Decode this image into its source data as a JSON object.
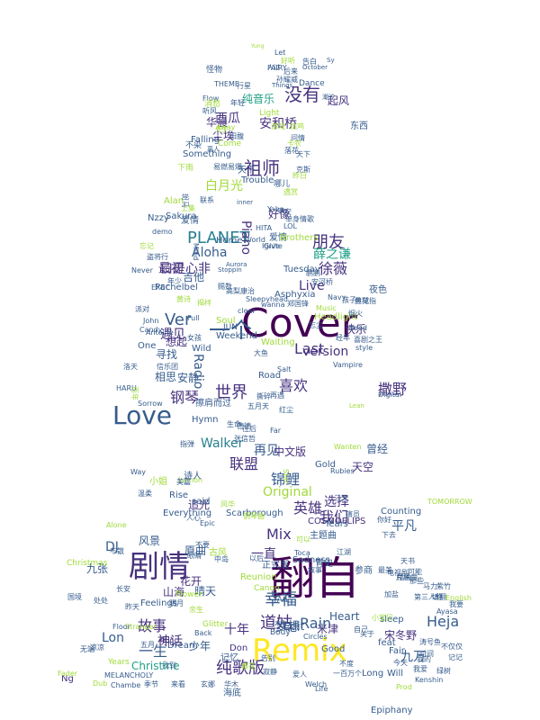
{
  "palette": [
    "#440154",
    "#46327e",
    "#365c8d",
    "#277f8e",
    "#1fa187",
    "#4ac16d",
    "#a0da39",
    "#fde725"
  ],
  "words": [
    {
      "text": "Cover",
      "c": 0
    },
    {
      "text": "翻自",
      "c": 0
    },
    {
      "text": "Remix",
      "c": 7
    },
    {
      "text": "剧情",
      "c": 1
    },
    {
      "text": "Love",
      "c": 2
    },
    {
      "text": "一个",
      "c": 2
    },
    {
      "text": "没有",
      "c": 1
    },
    {
      "text": "祖师",
      "c": 1
    },
    {
      "text": "Ver",
      "c": 2
    },
    {
      "text": "PLANET",
      "c": 3
    },
    {
      "text": "朋友",
      "c": 1
    },
    {
      "text": "世界",
      "c": 1
    },
    {
      "text": "version",
      "c": 1
    },
    {
      "text": "纯歌版",
      "c": 1
    },
    {
      "text": "道姑",
      "c": 1
    },
    {
      "text": "幸福",
      "c": 2
    },
    {
      "text": "Mix",
      "c": 1
    },
    {
      "text": "钢琴",
      "c": 1
    },
    {
      "text": "故事",
      "c": 1
    },
    {
      "text": "一生",
      "c": 2
    },
    {
      "text": "Lon",
      "c": 2
    },
    {
      "text": "Heja",
      "c": 2
    },
    {
      "text": "撒野",
      "c": 1
    },
    {
      "text": "Aloha",
      "c": 2
    },
    {
      "text": "最初",
      "c": 1
    },
    {
      "text": "徐薇",
      "c": 1
    },
    {
      "text": "口是心非",
      "c": 1
    },
    {
      "text": "我们",
      "c": 1
    },
    {
      "text": "Rain",
      "c": 2
    },
    {
      "text": "喜欢",
      "c": 1
    },
    {
      "text": "遇见",
      "c": 1
    },
    {
      "text": "Last",
      "c": 1
    },
    {
      "text": "Live",
      "c": 1
    },
    {
      "text": "Original",
      "c": 6
    },
    {
      "text": "九万",
      "c": 2
    },
    {
      "text": "平凡",
      "c": 2
    },
    {
      "text": "联盟",
      "c": 1
    },
    {
      "text": "一直",
      "c": 1
    },
    {
      "text": "英雄",
      "c": 1
    },
    {
      "text": "锦鲤",
      "c": 2
    },
    {
      "text": "梦想",
      "c": 2
    },
    {
      "text": "神话",
      "c": 1
    },
    {
      "text": "安和桥",
      "c": 1
    },
    {
      "text": "西瓜",
      "c": 1
    },
    {
      "text": "薛之谦",
      "c": 4
    },
    {
      "text": "白月光",
      "c": 6
    },
    {
      "text": "DJ",
      "c": 2
    },
    {
      "text": "九张",
      "c": 2
    },
    {
      "text": "Walker",
      "c": 3
    },
    {
      "text": "Radio",
      "c": 2
    },
    {
      "text": "Piano",
      "c": 1
    },
    {
      "text": "Heart",
      "c": 2
    },
    {
      "text": "Edit",
      "c": 2
    },
    {
      "text": "十年",
      "c": 1
    },
    {
      "text": "少年",
      "c": 2
    },
    {
      "text": "再见",
      "c": 2
    },
    {
      "text": "想起",
      "c": 1
    },
    {
      "text": "米津",
      "c": 1
    },
    {
      "text": "宋冬野",
      "c": 1
    },
    {
      "text": "选择",
      "c": 1
    },
    {
      "text": "花开",
      "c": 1
    },
    {
      "text": "追光",
      "c": 1
    },
    {
      "text": "快乐",
      "c": 1
    },
    {
      "text": "安静",
      "c": 2
    },
    {
      "text": "相思",
      "c": 2
    },
    {
      "text": "寻找",
      "c": 2
    },
    {
      "text": "吉他",
      "c": 2
    },
    {
      "text": "山海",
      "c": 1
    },
    {
      "text": "中文版",
      "c": 1
    },
    {
      "text": "曾经",
      "c": 2
    },
    {
      "text": "天空",
      "c": 1
    },
    {
      "text": "Feelings",
      "c": 2
    },
    {
      "text": "Home",
      "c": 2
    },
    {
      "text": "Dream",
      "c": 2
    },
    {
      "text": "Don",
      "c": 1
    },
    {
      "text": "Rise",
      "c": 2
    },
    {
      "text": "Reunion",
      "c": 6
    },
    {
      "text": "Alan",
      "c": 6
    },
    {
      "text": "晴天",
      "c": 2
    },
    {
      "text": "风景",
      "c": 2
    },
    {
      "text": "Ng",
      "c": 1
    },
    {
      "text": "Christine",
      "c": 4
    },
    {
      "text": "伤心",
      "c": 1
    },
    {
      "text": "华晨",
      "c": 1
    },
    {
      "text": "尘埃",
      "c": 1
    },
    {
      "text": "起风",
      "c": 1
    },
    {
      "text": "纯音乐",
      "c": 4
    },
    {
      "text": "好像",
      "c": 1
    },
    {
      "text": "Circles",
      "c": 2
    },
    {
      "text": "Something",
      "c": 2
    },
    {
      "text": "Counting",
      "c": 2
    },
    {
      "text": "COSMOFLIPS",
      "c": 1
    },
    {
      "text": "Sadness",
      "c": 2
    },
    {
      "text": "Christmas",
      "c": 6
    },
    {
      "text": "Good",
      "c": 2
    },
    {
      "text": "夜色",
      "c": 2
    },
    {
      "text": "海底",
      "c": 2
    },
    {
      "text": "爱情",
      "c": 2
    },
    {
      "text": "原曲",
      "c": 2
    },
    {
      "text": "天下",
      "c": 2
    },
    {
      "text": "东西",
      "c": 2
    },
    {
      "text": "Trouble",
      "c": 2
    },
    {
      "text": "Sakura",
      "c": 2
    },
    {
      "text": "Brothers",
      "c": 6
    },
    {
      "text": "Weekend",
      "c": 2
    },
    {
      "text": "Headlight",
      "c": 6
    },
    {
      "text": "Asphyxia",
      "c": 2
    },
    {
      "text": "Tuesday",
      "c": 2
    },
    {
      "text": "Scarborough",
      "c": 2
    },
    {
      "text": "Epiphany",
      "c": 2
    },
    {
      "text": "TOMORROW",
      "c": 6
    },
    {
      "text": "THEME",
      "c": 2
    },
    {
      "text": "Falling",
      "c": 2
    },
    {
      "text": "Pachelbel",
      "c": 2
    },
    {
      "text": "Sleepyhead",
      "c": 2
    },
    {
      "text": "Everything",
      "c": 2
    },
    {
      "text": "Wild",
      "c": 2
    },
    {
      "text": "Hymn",
      "c": 2
    },
    {
      "text": "Glitter",
      "c": 6
    },
    {
      "text": "Years",
      "c": 6
    },
    {
      "text": "MELANCHOLY",
      "c": 2
    },
    {
      "text": "Flower",
      "c": 6
    },
    {
      "text": "Fair",
      "c": 2
    },
    {
      "text": "Canon",
      "c": 6
    },
    {
      "text": "Stranger",
      "c": 6
    },
    {
      "text": "TAIL",
      "c": 2
    },
    {
      "text": "Nzzy",
      "c": 2
    },
    {
      "text": "EXEC",
      "c": 2
    },
    {
      "text": "FAIRY",
      "c": 2
    },
    {
      "text": "Dance",
      "c": 2
    },
    {
      "text": "Light",
      "c": 6
    },
    {
      "text": "Let",
      "c": 2
    },
    {
      "text": "Yung",
      "c": 6
    },
    {
      "text": "October",
      "c": 2
    },
    {
      "text": "Things",
      "c": 2
    },
    {
      "text": "Flow",
      "c": 2
    },
    {
      "text": "Come",
      "c": 6
    },
    {
      "text": "Away",
      "c": 6
    },
    {
      "text": "Never",
      "c": 2
    },
    {
      "text": "Aurora",
      "c": 2
    },
    {
      "text": "Stoppin",
      "c": 2
    },
    {
      "text": "John",
      "c": 2
    },
    {
      "text": "Candy",
      "c": 2
    },
    {
      "text": "Sorrow",
      "c": 2
    },
    {
      "text": "Antoine",
      "c": 2
    },
    {
      "text": "HARU",
      "c": 2
    },
    {
      "text": "One",
      "c": 2
    },
    {
      "text": "JUN",
      "c": 2
    },
    {
      "text": "Full",
      "c": 2
    },
    {
      "text": "Soul",
      "c": 6
    },
    {
      "text": "clear",
      "c": 2
    },
    {
      "text": "Waiting",
      "c": 6
    },
    {
      "text": "wanna",
      "c": 2
    },
    {
      "text": "style",
      "c": 2
    },
    {
      "text": "Need",
      "c": 2
    },
    {
      "text": "Digital",
      "c": 2
    },
    {
      "text": "Vampire",
      "c": 2
    },
    {
      "text": "Salt",
      "c": 2
    },
    {
      "text": "Road",
      "c": 2
    },
    {
      "text": "Star",
      "c": 6
    },
    {
      "text": "Gold",
      "c": 2
    },
    {
      "text": "Far",
      "c": 2
    },
    {
      "text": "Way",
      "c": 2
    },
    {
      "text": "said",
      "c": 2
    },
    {
      "text": "Lemon",
      "c": 6
    },
    {
      "text": "Epic",
      "c": 2
    },
    {
      "text": "Toca",
      "c": 2
    },
    {
      "text": "Tears",
      "c": 2
    },
    {
      "text": "Alone",
      "c": 6
    },
    {
      "text": "Floor",
      "c": 2
    },
    {
      "text": "Back",
      "c": 2
    },
    {
      "text": "English",
      "c": 6
    },
    {
      "text": "sleep",
      "c": 2
    },
    {
      "text": "feat",
      "c": 2
    },
    {
      "text": "Body",
      "c": 2
    },
    {
      "text": "Long",
      "c": 2
    },
    {
      "text": "Will",
      "c": 2
    },
    {
      "text": "Life",
      "c": 2
    },
    {
      "text": "Prod",
      "c": 6
    },
    {
      "text": "Kenshin",
      "c": 2
    },
    {
      "text": "Welch",
      "c": 2
    },
    {
      "text": "Fader",
      "c": 6
    },
    {
      "text": "Ayasa",
      "c": 2
    },
    {
      "text": "LOL",
      "c": 2
    },
    {
      "text": "HITA",
      "c": 2
    },
    {
      "text": "demo",
      "c": 2
    },
    {
      "text": "Mind",
      "c": 2
    },
    {
      "text": "Ignite",
      "c": 2
    },
    {
      "text": "Give",
      "c": 2
    },
    {
      "text": "inner",
      "c": 2
    },
    {
      "text": "Yaha",
      "c": 2
    },
    {
      "text": "World",
      "c": 2
    },
    {
      "text": "Navy",
      "c": 2
    },
    {
      "text": "Music",
      "c": 6
    },
    {
      "text": "Lean",
      "c": 6
    },
    {
      "text": "Rubies",
      "c": 2
    },
    {
      "text": "Dub",
      "c": 6
    },
    {
      "text": "Chambe",
      "c": 2
    },
    {
      "text": "Wanten",
      "c": 6
    },
    {
      "text": "Sy",
      "c": 2
    },
    {
      "text": "好听",
      "c": 6
    },
    {
      "text": "告白",
      "c": 2
    },
    {
      "text": "后来",
      "c": 2
    },
    {
      "text": "人过",
      "c": 2
    },
    {
      "text": "孙耀威",
      "c": 2
    },
    {
      "text": "潮汐",
      "c": 2
    },
    {
      "text": "消愁",
      "c": 6
    },
    {
      "text": "年轻",
      "c": 2
    },
    {
      "text": "行星",
      "c": 2
    },
    {
      "text": "怪物",
      "c": 2
    },
    {
      "text": "听风",
      "c": 2
    },
    {
      "text": "烧鸡",
      "c": 6
    },
    {
      "text": "落花",
      "c": 2
    },
    {
      "text": "问情",
      "c": 2
    },
    {
      "text": "游戏",
      "c": 6
    },
    {
      "text": "先生",
      "c": 6
    },
    {
      "text": "不染",
      "c": 2
    },
    {
      "text": "田馥",
      "c": 2
    },
    {
      "text": "离人",
      "c": 2
    },
    {
      "text": "卡农",
      "c": 6
    },
    {
      "text": "下雨",
      "c": 6
    },
    {
      "text": "易燃易爆",
      "c": 2
    },
    {
      "text": "哪儿",
      "c": 2
    },
    {
      "text": "天下",
      "c": 2
    },
    {
      "text": "克斯",
      "c": 2
    },
    {
      "text": "昨日",
      "c": 6
    },
    {
      "text": "遇赏",
      "c": 6
    },
    {
      "text": "斑马",
      "c": 2
    },
    {
      "text": "上集",
      "c": 6
    },
    {
      "text": "平安",
      "c": 2
    },
    {
      "text": "单身情歌",
      "c": 2
    },
    {
      "text": "联系",
      "c": 2
    },
    {
      "text": "爱情",
      "c": 2
    },
    {
      "text": "忘记",
      "c": 6
    },
    {
      "text": "盗将行",
      "c": 2
    },
    {
      "text": "鹏鹏",
      "c": 2
    },
    {
      "text": "安河桥",
      "c": 2
    },
    {
      "text": "孩子",
      "c": 2
    },
    {
      "text": "典狱",
      "c": 2
    },
    {
      "text": "兰花指",
      "c": 2
    },
    {
      "text": "年少",
      "c": 2
    },
    {
      "text": "郑国锋",
      "c": 2
    },
    {
      "text": "高梨康治",
      "c": 2
    },
    {
      "text": "赐数",
      "c": 2
    },
    {
      "text": "黄诗",
      "c": 6
    },
    {
      "text": "揭样",
      "c": 6
    },
    {
      "text": "派对",
      "c": 2
    },
    {
      "text": "女孩",
      "c": 2
    },
    {
      "text": "忘尘",
      "c": 2
    },
    {
      "text": "烟火",
      "c": 2
    },
    {
      "text": "大鱼",
      "c": 2
    },
    {
      "text": "经年",
      "c": 2
    },
    {
      "text": "喜剧之王",
      "c": 2
    },
    {
      "text": "信乐团",
      "c": 2
    },
    {
      "text": "洛天",
      "c": 2
    },
    {
      "text": "百年",
      "c": 6
    },
    {
      "text": "五月天",
      "c": 2
    },
    {
      "text": "红尘",
      "c": 2
    },
    {
      "text": "往后",
      "c": 2
    },
    {
      "text": "生命",
      "c": 2
    },
    {
      "text": "撕碎",
      "c": 2
    },
    {
      "text": "再遇",
      "c": 2
    },
    {
      "text": "擦肩而过",
      "c": 2
    },
    {
      "text": "德德",
      "c": 2
    },
    {
      "text": "张信哲",
      "c": 2
    },
    {
      "text": "指弹",
      "c": 2
    },
    {
      "text": "美嘉",
      "c": 2
    },
    {
      "text": "小姐",
      "c": 6
    },
    {
      "text": "温柔",
      "c": 2
    },
    {
      "text": "诗人",
      "c": 2
    },
    {
      "text": "人心",
      "c": 2
    },
    {
      "text": "风华",
      "c": 6
    },
    {
      "text": "古风",
      "c": 6
    },
    {
      "text": "不要",
      "c": 2
    },
    {
      "text": "眼睛",
      "c": 2
    },
    {
      "text": "以后",
      "c": 2
    },
    {
      "text": "中岛",
      "c": 2
    },
    {
      "text": "正式版",
      "c": 2
    },
    {
      "text": "钢琴曲",
      "c": 6
    },
    {
      "text": "可以",
      "c": 6
    },
    {
      "text": "叙事",
      "c": 2
    },
    {
      "text": "青史",
      "c": 2
    },
    {
      "text": "主题曲",
      "c": 2
    },
    {
      "text": "三天",
      "c": 2
    },
    {
      "text": "江湖",
      "c": 2
    },
    {
      "text": "演员",
      "c": 2
    },
    {
      "text": "下去",
      "c": 2
    },
    {
      "text": "你好",
      "c": 2
    },
    {
      "text": "天书",
      "c": 2
    },
    {
      "text": "可能",
      "c": 2
    },
    {
      "text": "电视剧",
      "c": 2
    },
    {
      "text": "最美",
      "c": 2
    },
    {
      "text": "参商",
      "c": 2
    },
    {
      "text": "插曲",
      "c": 2
    },
    {
      "text": "第三人称",
      "c": 2
    },
    {
      "text": "那些",
      "c": 2
    },
    {
      "text": "华木",
      "c": 2
    },
    {
      "text": "记忆",
      "c": 2
    },
    {
      "text": "明月",
      "c": 2
    },
    {
      "text": "余生",
      "c": 6
    },
    {
      "text": "樱花",
      "c": 6
    },
    {
      "text": "寂静",
      "c": 2
    },
    {
      "text": "告别",
      "c": 2
    },
    {
      "text": "爱人",
      "c": 2
    },
    {
      "text": "一百万个",
      "c": 2
    },
    {
      "text": "不度",
      "c": 2
    },
    {
      "text": "不仅仅",
      "c": 2
    },
    {
      "text": "来看",
      "c": 2
    },
    {
      "text": "季节",
      "c": 2
    },
    {
      "text": "玄娜",
      "c": 2
    },
    {
      "text": "找到",
      "c": 2
    },
    {
      "text": "无端",
      "c": 2
    },
    {
      "text": "五月",
      "c": 2
    },
    {
      "text": "昨天",
      "c": 2
    },
    {
      "text": "凉凉",
      "c": 2
    },
    {
      "text": "不散",
      "c": 2
    },
    {
      "text": "处处",
      "c": 2
    },
    {
      "text": "国境",
      "c": 2
    },
    {
      "text": "长安",
      "c": 2
    },
    {
      "text": "自己",
      "c": 2
    },
    {
      "text": "关于",
      "c": 2
    },
    {
      "text": "小宝贝",
      "c": 6
    },
    {
      "text": "加盐",
      "c": 2
    },
    {
      "text": "片尾曲",
      "c": 2
    },
    {
      "text": "马力",
      "c": 2
    },
    {
      "text": "填翻",
      "c": 2
    },
    {
      "text": "紫竹",
      "c": 2
    },
    {
      "text": "我要",
      "c": 2
    },
    {
      "text": "涛号鱼",
      "c": 2
    },
    {
      "text": "时间",
      "c": 2
    },
    {
      "text": "今天",
      "c": 2
    },
    {
      "text": "我爱",
      "c": 2
    },
    {
      "text": "我的",
      "c": 2
    },
    {
      "text": "记记",
      "c": 2
    },
    {
      "text": "绿树",
      "c": 2
    },
    {
      "text": "失去",
      "c": 2
    },
    {
      "text": "杨千嬅",
      "c": 2
    },
    {
      "text": "四月",
      "c": 2
    },
    {
      "text": "永远",
      "c": 2
    },
    {
      "text": "那么",
      "c": 2
    },
    {
      "text": "分手",
      "c": 2
    },
    {
      "text": "奔跑",
      "c": 2
    },
    {
      "text": "这么",
      "c": 2
    },
    {
      "text": "不同",
      "c": 2
    },
    {
      "text": "我们的",
      "c": 2
    }
  ]
}
